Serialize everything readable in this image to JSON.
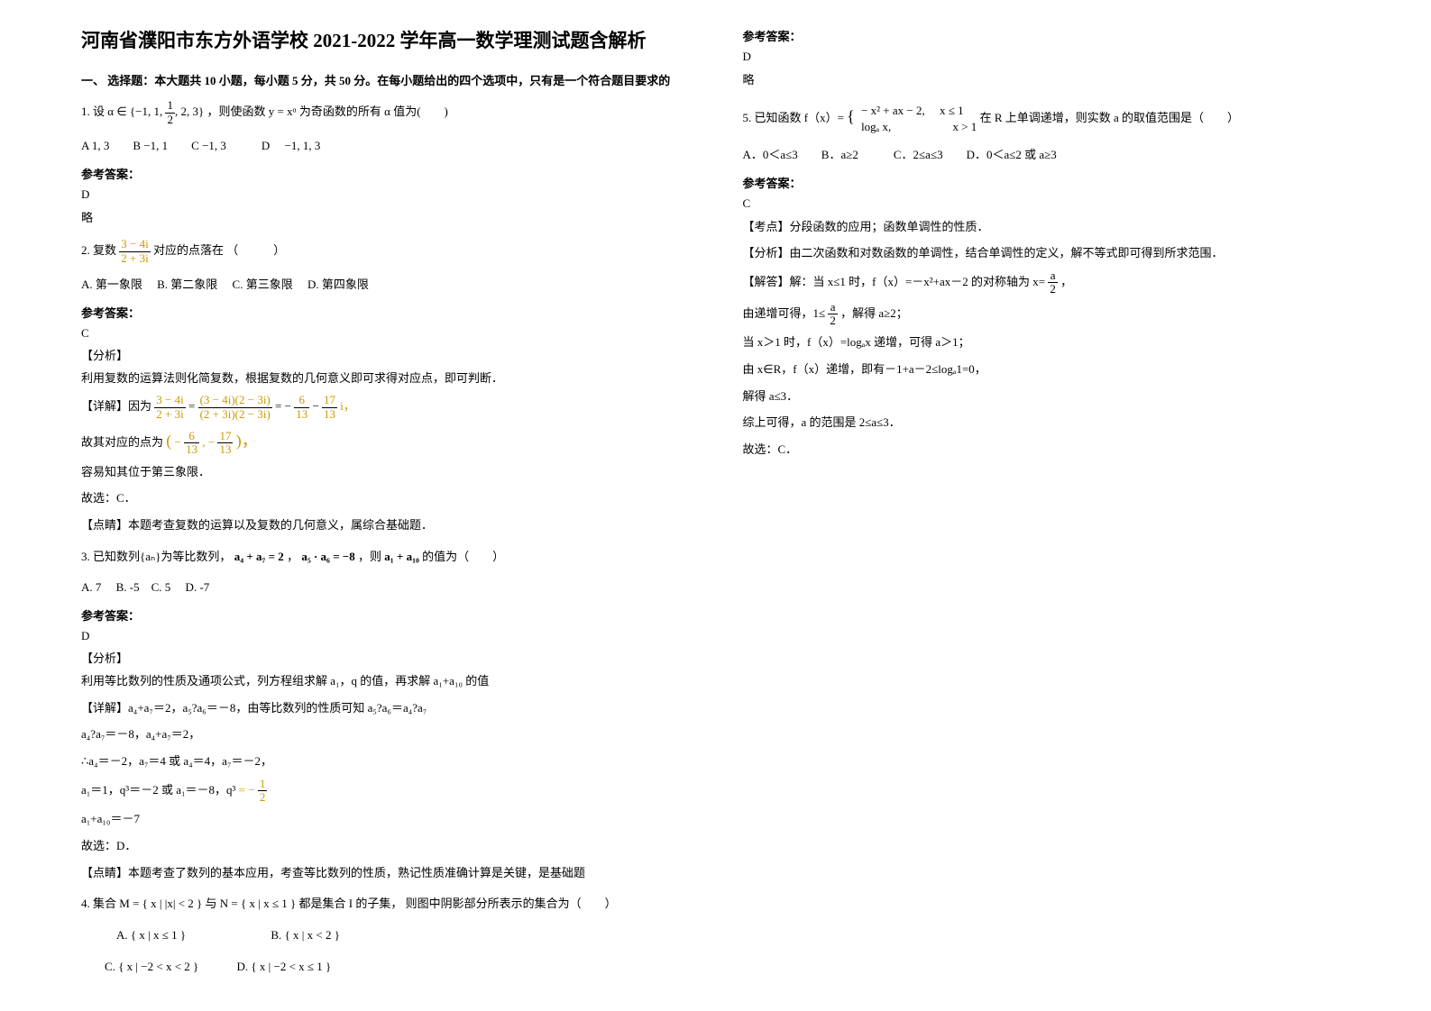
{
  "title": "河南省濮阳市东方外语学校 2021-2022 学年高一数学理测试题含解析",
  "section1_header": "一、 选择题：本大题共 10 小题，每小题 5 分，共 50 分。在每小题给出的四个选项中，只有是一个符合题目要求的",
  "q1_prefix": "1. 设",
  "q1_set": "α ∈ {−1, 1, ",
  "q1_frac_n": "1",
  "q1_frac_d": "2",
  "q1_set_tail": ", 2, 3}",
  "q1_mid": "，则使函数 ",
  "q1_func": "y = xᵅ",
  "q1_tail": " 为奇函数的所有 α 值为(　　)",
  "q1_opts": "A  1, 3　　B  −1, 1　　C  −1, 3　　　D　 −1, 1, 3",
  "ans_label": "参考答案：",
  "q1_ans": "D",
  "brief": "略",
  "q2_prefix": "2. 复数 ",
  "q2_frac_n": "3 − 4i",
  "q2_frac_d": "2 + 3i",
  "q2_tail": " 对应的点落在 （　　　）",
  "q2_opts": "A. 第一象限　 B. 第二象限　  C. 第三象限　  D. 第四象限",
  "q2_ans": "C",
  "analysis_label": "【分析】",
  "q2_analysis": "利用复数的运算法则化简复数，根据复数的几何意义即可求得对应点，即可判断．",
  "detail_label": "【详解】",
  "q2_detail_pre": "因为 ",
  "q2_d1_n": "3 − 4i",
  "q2_d1_d": "2 + 3i",
  "q2_eq": " = ",
  "q2_d2_n": "(3 − 4i)(2 − 3i)",
  "q2_d2_d": "(2 + 3i)(2 − 3i)",
  "q2_d3_pre": " = − ",
  "q2_d3_n": "6",
  "q2_d3_d": "13",
  "q2_d3_mid": " − ",
  "q2_d4_n": "17",
  "q2_d4_d": "13",
  "q2_d3_suf": " i，",
  "q2_pt_pre": "故其对应的点为 ",
  "q2_pt_l": "(",
  "q2_pt_neg1": "− ",
  "q2_pt_n1": "6",
  "q2_pt_d1": "13",
  "q2_pt_comma": ", − ",
  "q2_pt_n2": "17",
  "q2_pt_d2": "13",
  "q2_pt_r": ")，",
  "q2_line3": "容易知其位于第三象限．",
  "q2_line4": "故选：C．",
  "note_label": "【点睛】",
  "q2_note": "本题考查复数的运算以及复数的几何意义，属综合基础题．",
  "q3_prefix": "3. 已知数列{aₙ}为等比数列，",
  "q3_eq1": "a₄ + a₇ = 2",
  "q3_comma": "，",
  "q3_eq2": "a₅ · a₆ = −8",
  "q3_mid": "，则",
  "q3_eq3": "a₁ + a₁₀",
  "q3_tail": "的值为（　　）",
  "q3_opts": "A. 7　 B. -5　C. 5　 D. -7",
  "q3_ans": "D",
  "q3_analysis": "利用等比数列的性质及通项公式，列方程组求解 a₁，q 的值，再求解 a₁+a₁₀ 的值",
  "q3_d1": "a₄+a₇＝2，a₅?a₆＝－8，由等比数列的性质可知 a₅?a₆＝a₄?a₇",
  "q3_d2": "a₄?a₇＝－8，a₄+a₇＝2，",
  "q3_d3": "∴a₄＝－2，a₇＝4 或 a₄＝4，a₇＝－2，",
  "q3_d4_pre": "a₁＝1，q³＝－2 或 a₁＝－8，q³",
  "q3_d4_eq": " = − ",
  "q3_d4_n": "1",
  "q3_d4_d": "2",
  "q3_d5": "a₁+a₁₀＝－7",
  "q3_d6": "故选：D．",
  "q3_note": "本题考查了数列的基本应用，考查等比数列的性质，熟记性质准确计算是关键，是基础题",
  "q4_prefix": "4. 集合",
  "q4_M": "M = { x | |x| < 2 }",
  "q4_and": " 与 ",
  "q4_N": "N = { x | x ≤ 1 }",
  "q4_tail": " 都是集合 I 的子集，  则图中阴影部分所表示的集合为（　　）",
  "q4_A": "{ x | x ≤ 1 }",
  "q4_B": "{ x | x < 2 }",
  "q4_C": "{ x | −2 < x < 2 }",
  "q4_D": "{ x | −2 < x ≤ 1 }",
  "q4_lblA": "A.",
  "q4_lblB": "B.",
  "q4_lblC": "C.",
  "q4_lblD": "D.",
  "q4_ans": "D",
  "q5_prefix": "5. 已知函数 f（x）= ",
  "q5_case1": "− x² + ax − 2,　 x ≤ 1",
  "q5_case2": "logₐ x,　　　　　 x > 1",
  "q5_tail": " 在 R 上单调递增，则实数 a 的取值范围是（　　）",
  "q5_opts": "A．0＜a≤3　　B．a≥2　　　C．2≤a≤3　　D．0＜a≤2 或 a≥3",
  "q5_ans": "C",
  "kdian_label": "【考点】",
  "q5_kdian": "分段函数的应用；函数单调性的性质．",
  "q5_analysis": "由二次函数和对数函数的单调性，结合单调性的定义，解不等式即可得到所求范围．",
  "solve_label": "【解答】",
  "q5_s1_pre": "解：当 x≤1 时，f（x）=－x²+ax－2 的对称轴为 x= ",
  "q5_s1_n": "a",
  "q5_s1_d": "2",
  "q5_s1_suf": "，",
  "q5_s2_pre": "由递增可得，1≤ ",
  "q5_s2_n": "a",
  "q5_s2_d": "2",
  "q5_s2_suf": "，解得 a≥2；",
  "q5_s3": "当 x＞1 时，f（x）=logₐx 递增，可得 a＞1；",
  "q5_s4": "由 x∈R，f（x）递增，即有－1+a－2≤logₐ1=0，",
  "q5_s5": "解得 a≤3．",
  "q5_s6": "综上可得，a 的范围是 2≤a≤3．",
  "q5_s7": "故选：C．"
}
